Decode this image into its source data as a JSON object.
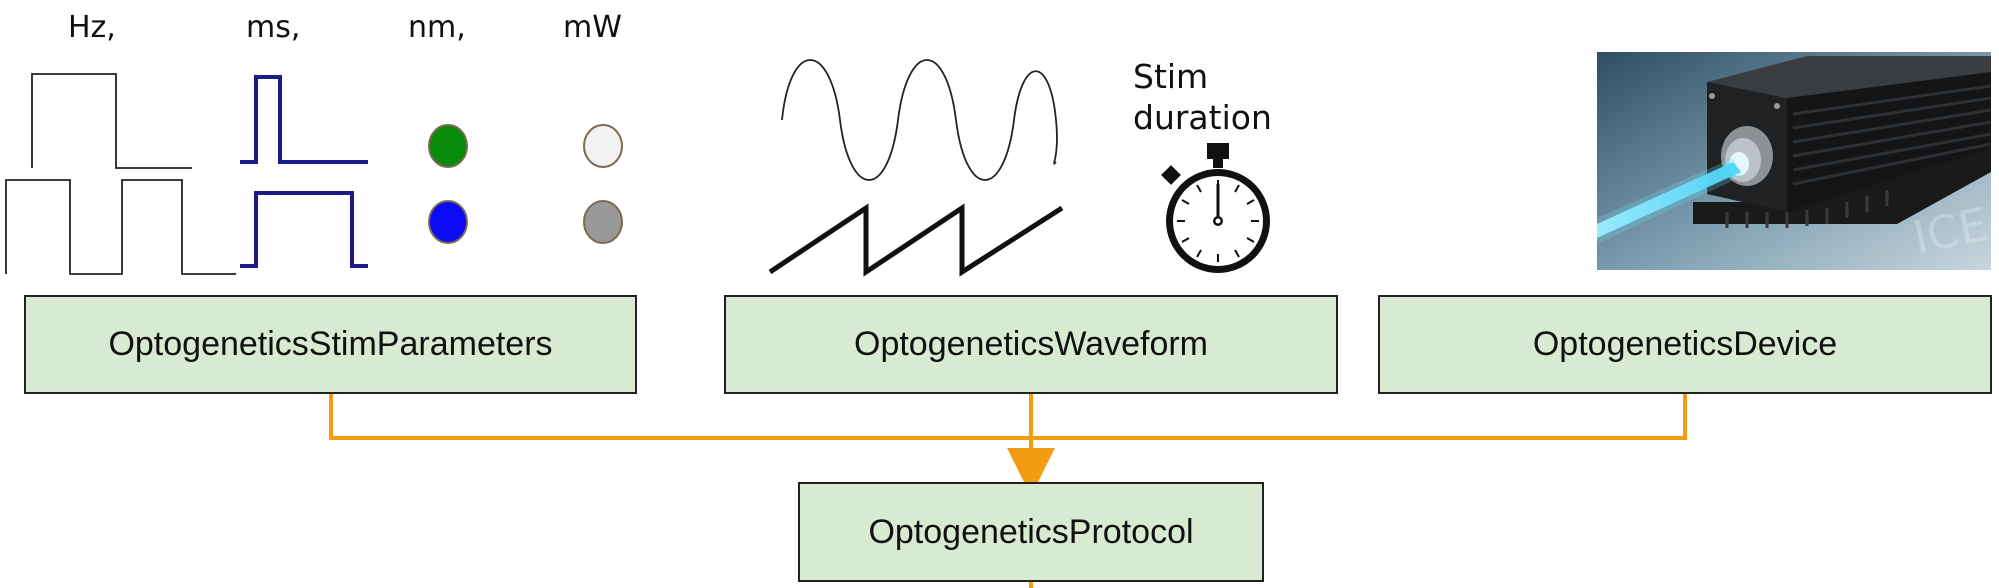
{
  "units": {
    "freq": "Hz,",
    "time": "ms,",
    "wavelength": "nm,",
    "power": "mW"
  },
  "caption": {
    "line1": "Stim",
    "line2": "duration"
  },
  "boxes": {
    "stim": "OptogeneticsStimParameters",
    "waveform": "OptogeneticsWaveform",
    "device": "OptogeneticsDevice",
    "protocol": "OptogeneticsProtocol"
  },
  "laser_watermark": "ICE",
  "colors": {
    "box_fill": "#d9ead3",
    "connector": "#f39c12",
    "pulse_blue": "#1a1a8c",
    "dot_green": "#0a8a0a",
    "dot_blue": "#0a0af5",
    "dot_light_gray": "#f2f2f2",
    "dot_gray": "#999999",
    "laser_beam": "#66e0ff"
  },
  "icons": [
    "square-wave-icon",
    "pulse-icon",
    "wavelength-dot-icon",
    "power-dot-icon",
    "sine-wave-icon",
    "sawtooth-wave-icon",
    "stopwatch-icon",
    "laser-device-image"
  ]
}
